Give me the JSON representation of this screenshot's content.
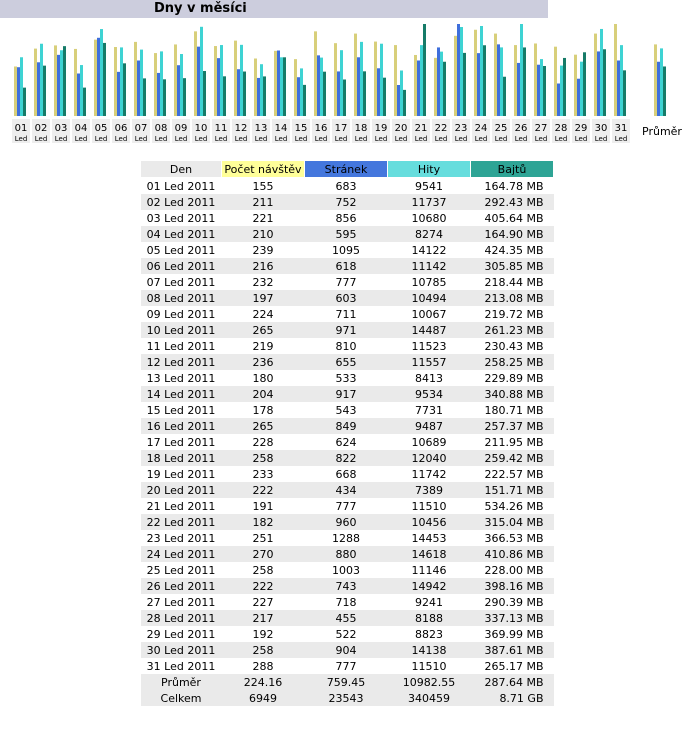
{
  "header": {
    "title": "Dny v měsíci"
  },
  "chart_data": {
    "type": "bar",
    "categories": [
      "01",
      "02",
      "03",
      "04",
      "05",
      "06",
      "07",
      "08",
      "09",
      "10",
      "11",
      "12",
      "13",
      "14",
      "15",
      "16",
      "17",
      "18",
      "19",
      "20",
      "21",
      "22",
      "23",
      "24",
      "25",
      "26",
      "27",
      "28",
      "29",
      "30",
      "31"
    ],
    "sublabel": "Led",
    "series": [
      {
        "name": "Počet návštěv",
        "color": "#d8cf7a",
        "values": [
          155,
          211,
          221,
          210,
          239,
          216,
          232,
          197,
          224,
          265,
          219,
          236,
          180,
          204,
          178,
          265,
          228,
          258,
          233,
          222,
          191,
          182,
          251,
          270,
          258,
          222,
          227,
          217,
          192,
          258,
          288
        ]
      },
      {
        "name": "Stránek",
        "color": "#3f6fdc",
        "values": [
          683,
          752,
          856,
          595,
          1095,
          618,
          777,
          603,
          711,
          971,
          810,
          655,
          533,
          917,
          543,
          849,
          624,
          822,
          668,
          434,
          777,
          960,
          1288,
          880,
          1003,
          743,
          718,
          455,
          522,
          904,
          777
        ]
      },
      {
        "name": "Hity",
        "color": "#3ed3d3",
        "values": [
          9541,
          11737,
          10680,
          8274,
          14122,
          11142,
          10785,
          10494,
          10067,
          14487,
          11523,
          11557,
          8413,
          9534,
          7731,
          9487,
          10689,
          12040,
          11742,
          7389,
          11510,
          10456,
          14453,
          14618,
          11146,
          14942,
          9241,
          8188,
          8823,
          14138,
          11510
        ]
      },
      {
        "name": "Bajtů",
        "color": "#167b68",
        "values": [
          164.78,
          292.43,
          405.64,
          164.9,
          424.35,
          305.85,
          218.44,
          213.08,
          219.72,
          261.23,
          230.43,
          258.25,
          229.89,
          340.88,
          180.71,
          257.37,
          211.95,
          259.42,
          222.57,
          151.71,
          534.26,
          315.04,
          366.53,
          410.86,
          228.0,
          398.16,
          290.39,
          337.13,
          369.99,
          387.61,
          265.17
        ]
      }
    ],
    "average": {
      "label": "Průměr",
      "values": [
        224.16,
        759.45,
        10982.55,
        287.64
      ]
    }
  },
  "table": {
    "headers": {
      "den": "Den",
      "visits": "Počet návštěv",
      "pages": "Stránek",
      "hits": "Hity",
      "bytes": "Bajtů"
    },
    "rows": [
      {
        "day": "01 Led 2011",
        "visits": "155",
        "pages": "683",
        "hits": "9541",
        "bytes": "164.78 MB"
      },
      {
        "day": "02 Led 2011",
        "visits": "211",
        "pages": "752",
        "hits": "11737",
        "bytes": "292.43 MB"
      },
      {
        "day": "03 Led 2011",
        "visits": "221",
        "pages": "856",
        "hits": "10680",
        "bytes": "405.64 MB"
      },
      {
        "day": "04 Led 2011",
        "visits": "210",
        "pages": "595",
        "hits": "8274",
        "bytes": "164.90 MB"
      },
      {
        "day": "05 Led 2011",
        "visits": "239",
        "pages": "1095",
        "hits": "14122",
        "bytes": "424.35 MB"
      },
      {
        "day": "06 Led 2011",
        "visits": "216",
        "pages": "618",
        "hits": "11142",
        "bytes": "305.85 MB"
      },
      {
        "day": "07 Led 2011",
        "visits": "232",
        "pages": "777",
        "hits": "10785",
        "bytes": "218.44 MB"
      },
      {
        "day": "08 Led 2011",
        "visits": "197",
        "pages": "603",
        "hits": "10494",
        "bytes": "213.08 MB"
      },
      {
        "day": "09 Led 2011",
        "visits": "224",
        "pages": "711",
        "hits": "10067",
        "bytes": "219.72 MB"
      },
      {
        "day": "10 Led 2011",
        "visits": "265",
        "pages": "971",
        "hits": "14487",
        "bytes": "261.23 MB"
      },
      {
        "day": "11 Led 2011",
        "visits": "219",
        "pages": "810",
        "hits": "11523",
        "bytes": "230.43 MB"
      },
      {
        "day": "12 Led 2011",
        "visits": "236",
        "pages": "655",
        "hits": "11557",
        "bytes": "258.25 MB"
      },
      {
        "day": "13 Led 2011",
        "visits": "180",
        "pages": "533",
        "hits": "8413",
        "bytes": "229.89 MB"
      },
      {
        "day": "14 Led 2011",
        "visits": "204",
        "pages": "917",
        "hits": "9534",
        "bytes": "340.88 MB"
      },
      {
        "day": "15 Led 2011",
        "visits": "178",
        "pages": "543",
        "hits": "7731",
        "bytes": "180.71 MB"
      },
      {
        "day": "16 Led 2011",
        "visits": "265",
        "pages": "849",
        "hits": "9487",
        "bytes": "257.37 MB"
      },
      {
        "day": "17 Led 2011",
        "visits": "228",
        "pages": "624",
        "hits": "10689",
        "bytes": "211.95 MB"
      },
      {
        "day": "18 Led 2011",
        "visits": "258",
        "pages": "822",
        "hits": "12040",
        "bytes": "259.42 MB"
      },
      {
        "day": "19 Led 2011",
        "visits": "233",
        "pages": "668",
        "hits": "11742",
        "bytes": "222.57 MB"
      },
      {
        "day": "20 Led 2011",
        "visits": "222",
        "pages": "434",
        "hits": "7389",
        "bytes": "151.71 MB"
      },
      {
        "day": "21 Led 2011",
        "visits": "191",
        "pages": "777",
        "hits": "11510",
        "bytes": "534.26 MB"
      },
      {
        "day": "22 Led 2011",
        "visits": "182",
        "pages": "960",
        "hits": "10456",
        "bytes": "315.04 MB"
      },
      {
        "day": "23 Led 2011",
        "visits": "251",
        "pages": "1288",
        "hits": "14453",
        "bytes": "366.53 MB"
      },
      {
        "day": "24 Led 2011",
        "visits": "270",
        "pages": "880",
        "hits": "14618",
        "bytes": "410.86 MB"
      },
      {
        "day": "25 Led 2011",
        "visits": "258",
        "pages": "1003",
        "hits": "11146",
        "bytes": "228.00 MB"
      },
      {
        "day": "26 Led 2011",
        "visits": "222",
        "pages": "743",
        "hits": "14942",
        "bytes": "398.16 MB"
      },
      {
        "day": "27 Led 2011",
        "visits": "227",
        "pages": "718",
        "hits": "9241",
        "bytes": "290.39 MB"
      },
      {
        "day": "28 Led 2011",
        "visits": "217",
        "pages": "455",
        "hits": "8188",
        "bytes": "337.13 MB"
      },
      {
        "day": "29 Led 2011",
        "visits": "192",
        "pages": "522",
        "hits": "8823",
        "bytes": "369.99 MB"
      },
      {
        "day": "30 Led 2011",
        "visits": "258",
        "pages": "904",
        "hits": "14138",
        "bytes": "387.61 MB"
      },
      {
        "day": "31 Led 2011",
        "visits": "288",
        "pages": "777",
        "hits": "11510",
        "bytes": "265.17 MB"
      }
    ],
    "average": {
      "label": "Průměr",
      "visits": "224.16",
      "pages": "759.45",
      "hits": "10982.55",
      "bytes": "287.64 MB"
    },
    "total": {
      "label": "Celkem",
      "visits": "6949",
      "pages": "23543",
      "hits": "340459",
      "bytes": "8.71 GB"
    }
  }
}
